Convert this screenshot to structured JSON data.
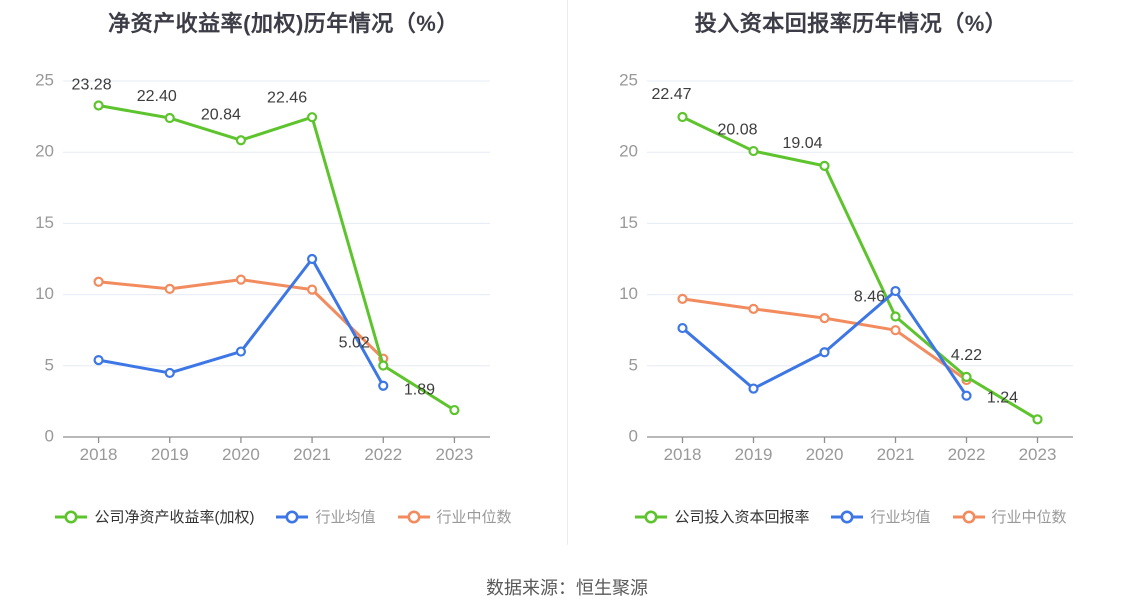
{
  "footer": {
    "source": "数据来源：恒生聚源"
  },
  "colors": {
    "company": "#5ec42d",
    "industry_mean": "#3d76e5",
    "industry_median": "#f28c5f",
    "grid_line": "#e6ebf4",
    "axis_line": "#8f8f8f",
    "axis_label": "#999999",
    "data_label": "#3d3d3d",
    "title": "#3d3d47",
    "footer_text": "#595959",
    "legend_active": "#333333",
    "legend_muted": "#999999"
  },
  "chart_data": [
    {
      "type": "line",
      "title": "净资产收益率(加权)历年情况（%）",
      "categories": [
        "2018",
        "2019",
        "2020",
        "2021",
        "2022",
        "2023"
      ],
      "ylim": [
        0,
        25
      ],
      "y_ticks": [
        0,
        5,
        10,
        15,
        20,
        25
      ],
      "grid": true,
      "legend_position": "bottom",
      "series": [
        {
          "name": "行业中位数",
          "color": "industry_median",
          "values": [
            10.9,
            10.4,
            11.05,
            10.35,
            5.5,
            null
          ],
          "labels": null
        },
        {
          "name": "公司净资产收益率(加权)",
          "color": "company",
          "values": [
            23.28,
            22.4,
            20.84,
            22.46,
            5.02,
            1.89
          ],
          "labels": [
            "23.28",
            "22.40",
            "20.84",
            "22.46",
            "5.02",
            "1.89"
          ]
        },
        {
          "name": "行业均值",
          "color": "industry_mean",
          "values": [
            5.4,
            4.5,
            6.0,
            12.5,
            3.6,
            null
          ],
          "labels": null
        }
      ],
      "legend": [
        {
          "label": "公司净资产收益率(加权)",
          "color": "company",
          "muted": false
        },
        {
          "label": "行业均值",
          "color": "industry_mean",
          "muted": true
        },
        {
          "label": "行业中位数",
          "color": "industry_median",
          "muted": true
        }
      ]
    },
    {
      "type": "line",
      "title": "投入资本回报率历年情况（%）",
      "categories": [
        "2018",
        "2019",
        "2020",
        "2021",
        "2022",
        "2023"
      ],
      "ylim": [
        0,
        25
      ],
      "y_ticks": [
        0,
        5,
        10,
        15,
        20,
        25
      ],
      "grid": true,
      "legend_position": "bottom",
      "series": [
        {
          "name": "行业中位数",
          "color": "industry_median",
          "values": [
            9.7,
            9.0,
            8.35,
            7.5,
            4.0,
            null
          ],
          "labels": null
        },
        {
          "name": "公司投入资本回报率",
          "color": "company",
          "values": [
            22.47,
            20.08,
            19.04,
            8.46,
            4.22,
            1.24
          ],
          "labels": [
            "22.47",
            "20.08",
            "19.04",
            "8.46",
            "4.22",
            "1.24"
          ]
        },
        {
          "name": "行业均值",
          "color": "industry_mean",
          "values": [
            7.65,
            3.4,
            5.95,
            10.25,
            2.9,
            null
          ],
          "labels": null
        }
      ],
      "legend": [
        {
          "label": "公司投入资本回报率",
          "color": "company",
          "muted": false
        },
        {
          "label": "行业均值",
          "color": "industry_mean",
          "muted": true
        },
        {
          "label": "行业中位数",
          "color": "industry_median",
          "muted": true
        }
      ]
    }
  ]
}
